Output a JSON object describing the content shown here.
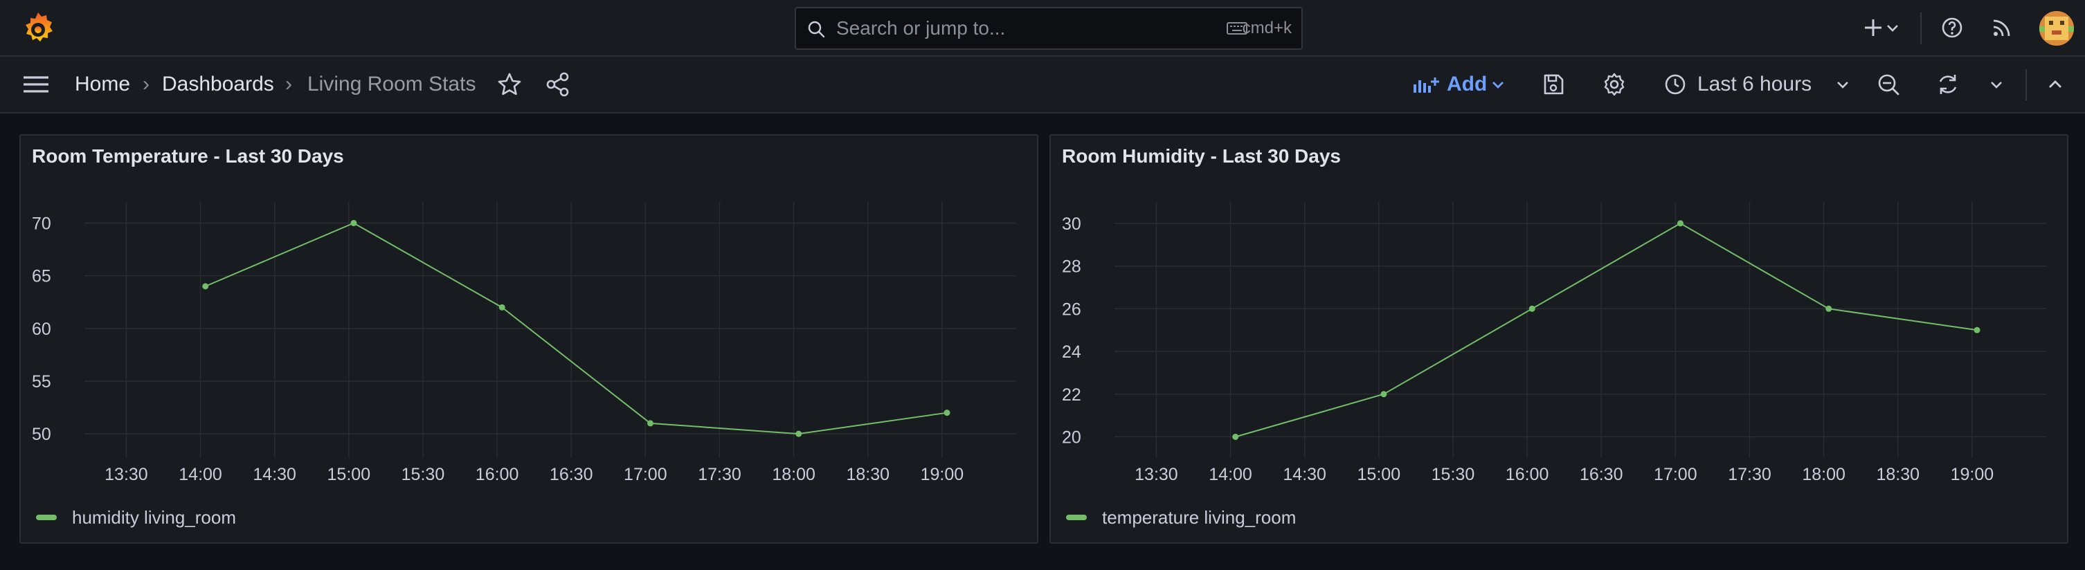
{
  "topbar": {
    "search_placeholder": "Search or jump to...",
    "search_shortcut": "cmd+k",
    "icons": [
      "grafana-logo-icon",
      "search-icon",
      "keyboard-icon",
      "plus-icon",
      "chevron-down-icon",
      "help-icon",
      "news-feed-icon",
      "user-avatar"
    ]
  },
  "navbar": {
    "breadcrumb": [
      "Home",
      "Dashboards",
      "Living Room Stats"
    ],
    "add_label": "Add",
    "time_range": "Last 6 hours",
    "colors": {
      "accent": "#6e9fff"
    }
  },
  "panels": [
    {
      "title": "Room Temperature - Last 30 Days",
      "legend": "humidity living_room"
    },
    {
      "title": "Room Humidity - Last 30 Days",
      "legend": "temperature living_room"
    }
  ],
  "chart_data": [
    {
      "type": "line",
      "title": "Room Temperature - Last 30 Days",
      "x_ticks": [
        "13:30",
        "14:00",
        "14:30",
        "15:00",
        "15:30",
        "16:00",
        "16:30",
        "17:00",
        "17:30",
        "18:00",
        "18:30",
        "19:00"
      ],
      "y_ticks": [
        50,
        55,
        60,
        65,
        70
      ],
      "xlim": [
        "13:17",
        "19:30"
      ],
      "ylim": [
        48.5,
        72
      ],
      "grid": true,
      "legend_position": "bottom-left",
      "series": [
        {
          "name": "humidity living_room",
          "color": "#73bf69",
          "x": [
            "14:02",
            "15:02",
            "16:02",
            "17:02",
            "18:02",
            "19:02"
          ],
          "values": [
            64,
            70,
            62,
            51,
            50,
            52
          ]
        }
      ]
    },
    {
      "type": "line",
      "title": "Room Humidity - Last 30 Days",
      "x_ticks": [
        "13:30",
        "14:00",
        "14:30",
        "15:00",
        "15:30",
        "16:00",
        "16:30",
        "17:00",
        "17:30",
        "18:00",
        "18:30",
        "19:00"
      ],
      "y_ticks": [
        20,
        22,
        24,
        26,
        28,
        30
      ],
      "xlim": [
        "13:17",
        "19:30"
      ],
      "ylim": [
        19.4,
        31
      ],
      "grid": true,
      "legend_position": "bottom-left",
      "series": [
        {
          "name": "temperature living_room",
          "color": "#73bf69",
          "x": [
            "14:02",
            "15:02",
            "16:02",
            "17:02",
            "18:02",
            "19:02"
          ],
          "values": [
            20,
            22,
            26,
            30,
            26,
            25
          ]
        }
      ]
    }
  ]
}
